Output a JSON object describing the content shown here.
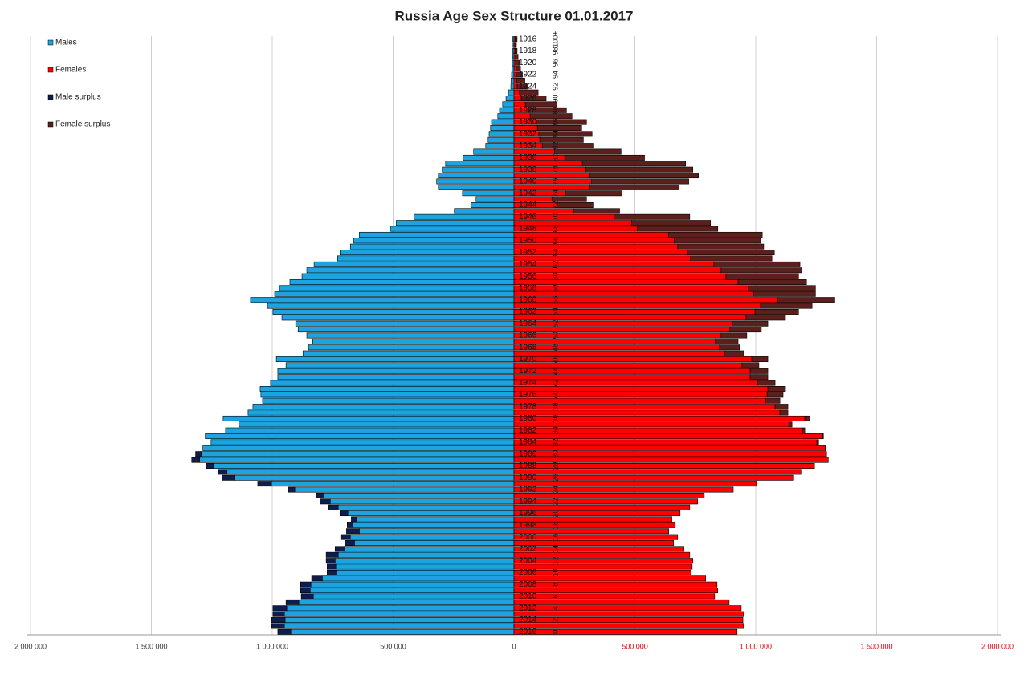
{
  "chart_data": {
    "type": "pyramid",
    "title": "Russia Age Sex Structure 01.01.2017",
    "categories": [
      "1916",
      null,
      "1918",
      null,
      "1920",
      null,
      "1922",
      null,
      "1924",
      null,
      "1926",
      null,
      "1928",
      null,
      "1930",
      null,
      "1932",
      null,
      "1934",
      null,
      "1936",
      null,
      "1938",
      null,
      "1940",
      null,
      "1942",
      null,
      "1944",
      null,
      "1946",
      null,
      "1948",
      null,
      "1950",
      null,
      "1952",
      null,
      "1954",
      null,
      "1956",
      null,
      "1958",
      null,
      "1960",
      null,
      "1962",
      null,
      "1964",
      null,
      "1966",
      null,
      "1968",
      null,
      "1970",
      null,
      "1972",
      null,
      "1974",
      null,
      "1976",
      null,
      "1978",
      null,
      "1980",
      null,
      "1982",
      null,
      "1984",
      null,
      "1986",
      null,
      "1988",
      null,
      "1990",
      null,
      "1992",
      null,
      "1994",
      null,
      "1996",
      null,
      "1998",
      null,
      "2000",
      null,
      "2002",
      null,
      "2004",
      null,
      "2006",
      null,
      "2008",
      null,
      "2010",
      null,
      "2012",
      null,
      "2014",
      null,
      "2016"
    ],
    "age_labels": [
      "100+",
      null,
      "98",
      null,
      "96",
      null,
      "94",
      null,
      "92",
      null,
      "90",
      null,
      "88",
      null,
      "86",
      null,
      "84",
      null,
      "82",
      null,
      "80",
      null,
      "78",
      null,
      "76",
      null,
      "74",
      null,
      "72",
      null,
      "70",
      null,
      "68",
      null,
      "66",
      null,
      "64",
      null,
      "62",
      null,
      "60",
      null,
      "58",
      null,
      "56",
      null,
      "54",
      null,
      "52",
      null,
      "50",
      null,
      "48",
      null,
      "46",
      null,
      "44",
      null,
      "42",
      null,
      "40",
      null,
      "38",
      null,
      "36",
      null,
      "34",
      null,
      "32",
      null,
      "30",
      null,
      "28",
      null,
      "26",
      null,
      "24",
      null,
      "22",
      null,
      "20",
      null,
      "18",
      null,
      "16",
      null,
      "14",
      null,
      "12",
      null,
      "10",
      null,
      "8",
      null,
      "6",
      null,
      "4",
      null,
      "2",
      null,
      "0"
    ],
    "series": [
      {
        "name": "Males",
        "color": "#1ca3e0",
        "side": "left",
        "values": [
          5000,
          4000,
          5000,
          6000,
          7000,
          8000,
          10000,
          12000,
          13000,
          23000,
          33000,
          47000,
          60000,
          67000,
          93000,
          97000,
          103000,
          107000,
          117000,
          167000,
          210000,
          283000,
          297000,
          313000,
          320000,
          313000,
          213000,
          157000,
          177000,
          247000,
          413000,
          487000,
          510000,
          640000,
          663000,
          677000,
          720000,
          730000,
          827000,
          857000,
          877000,
          927000,
          970000,
          990000,
          1090000,
          1020000,
          997000,
          960000,
          903000,
          893000,
          857000,
          833000,
          850000,
          873000,
          983000,
          943000,
          977000,
          977000,
          1007000,
          1050000,
          1047000,
          1040000,
          1080000,
          1100000,
          1203000,
          1137000,
          1193000,
          1277000,
          1253000,
          1287000,
          1293000,
          1300000,
          1243000,
          1187000,
          1157000,
          1003000,
          907000,
          787000,
          760000,
          727000,
          687000,
          653000,
          667000,
          640000,
          677000,
          660000,
          703000,
          727000,
          740000,
          737000,
          733000,
          793000,
          840000,
          843000,
          830000,
          890000,
          940000,
          950000,
          947000,
          950000,
          923000
        ]
      },
      {
        "name": "Females",
        "color": "#ff0000",
        "side": "right",
        "values": [
          5000,
          4000,
          5000,
          6000,
          7000,
          8000,
          10000,
          12000,
          13000,
          23000,
          33000,
          47000,
          60000,
          67000,
          93000,
          97000,
          103000,
          107000,
          117000,
          167000,
          210000,
          283000,
          297000,
          313000,
          320000,
          313000,
          213000,
          157000,
          177000,
          247000,
          413000,
          487000,
          510000,
          640000,
          663000,
          677000,
          720000,
          730000,
          827000,
          857000,
          877000,
          927000,
          970000,
          990000,
          1090000,
          1020000,
          997000,
          960000,
          903000,
          893000,
          857000,
          833000,
          850000,
          873000,
          983000,
          943000,
          977000,
          977000,
          1007000,
          1050000,
          1047000,
          1040000,
          1080000,
          1100000,
          1203000,
          1137000,
          1193000,
          1277000,
          1253000,
          1287000,
          1293000,
          1300000,
          1243000,
          1187000,
          1157000,
          1003000,
          907000,
          787000,
          760000,
          727000,
          687000,
          653000,
          667000,
          640000,
          677000,
          660000,
          703000,
          727000,
          740000,
          737000,
          733000,
          793000,
          840000,
          843000,
          830000,
          890000,
          940000,
          950000,
          947000,
          950000,
          923000
        ]
      },
      {
        "name": "Male surplus",
        "color": "#0c1e4e",
        "side": "left",
        "values": [
          null,
          null,
          null,
          null,
          null,
          null,
          null,
          null,
          null,
          null,
          null,
          null,
          null,
          null,
          null,
          null,
          null,
          null,
          null,
          null,
          null,
          null,
          null,
          null,
          null,
          null,
          null,
          null,
          null,
          null,
          null,
          null,
          null,
          null,
          null,
          null,
          null,
          null,
          null,
          null,
          null,
          null,
          null,
          null,
          null,
          null,
          null,
          null,
          null,
          null,
          null,
          null,
          null,
          null,
          null,
          null,
          null,
          null,
          null,
          null,
          null,
          null,
          null,
          null,
          null,
          null,
          null,
          null,
          null,
          null,
          24000,
          33000,
          30000,
          36000,
          50000,
          57000,
          26000,
          30000,
          43000,
          40000,
          33000,
          20000,
          23000,
          53000,
          40000,
          40000,
          37000,
          50000,
          37000,
          36000,
          40000,
          44000,
          43000,
          40000,
          50000,
          53000,
          57000,
          47000,
          56000,
          53000,
          54000
        ]
      },
      {
        "name": "Female surplus",
        "color": "#5c1f1b",
        "side": "right",
        "values": [
          8000,
          6000,
          8000,
          11000,
          15000,
          19000,
          25000,
          33000,
          42000,
          77000,
          100000,
          130000,
          157000,
          173000,
          207000,
          183000,
          220000,
          180000,
          210000,
          276000,
          330000,
          427000,
          443000,
          450000,
          403000,
          370000,
          234000,
          143000,
          150000,
          190000,
          314000,
          326000,
          333000,
          387000,
          357000,
          356000,
          357000,
          337000,
          356000,
          333000,
          300000,
          283000,
          277000,
          257000,
          237000,
          213000,
          180000,
          163000,
          147000,
          130000,
          106000,
          94000,
          83000,
          77000,
          67000,
          70000,
          73000,
          73000,
          73000,
          73000,
          66000,
          60000,
          53000,
          33000,
          20000,
          13000,
          10000,
          3000,
          7000,
          3000,
          null,
          null,
          null,
          null,
          null,
          null,
          null,
          null,
          null,
          null,
          null,
          null,
          null,
          null,
          null,
          null,
          null,
          null,
          null,
          null,
          null,
          null,
          null,
          null,
          null,
          null,
          null,
          null,
          null,
          null,
          null
        ]
      }
    ],
    "xlim": [
      -2000000,
      2000000
    ],
    "xticks": [
      {
        "value": -2000000,
        "label": "2 000 000"
      },
      {
        "value": -1500000,
        "label": "1 500 000"
      },
      {
        "value": -1000000,
        "label": "1 000 000"
      },
      {
        "value": -500000,
        "label": "500 000"
      },
      0,
      {
        "value": 500000,
        "label": "500 000"
      },
      {
        "value": 1000000,
        "label": "1 000 000"
      },
      {
        "value": 1500000,
        "label": "1 500 000"
      },
      {
        "value": 2000000,
        "label": "2 000 000"
      }
    ],
    "grid": true,
    "legend": "top-left"
  }
}
